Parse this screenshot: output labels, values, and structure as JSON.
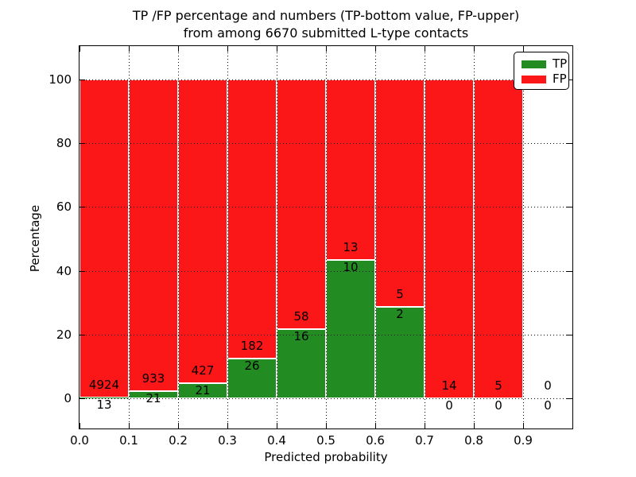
{
  "title_line1": "TP /FP percentage and numbers (TP-bottom value, FP-upper)",
  "title_line2": "from among 6670 submitted L-type contacts",
  "chart_data": {
    "type": "bar",
    "stacked": true,
    "normalized_to_percent": true,
    "title": "TP /FP percentage and numbers (TP-bottom value, FP-upper) from among 6670 submitted L-type contacts",
    "xlabel": "Predicted probability",
    "ylabel": "Percentage",
    "xlim": [
      0.0,
      1.0
    ],
    "ylim": [
      -10,
      110
    ],
    "bin_edges": [
      0.0,
      0.1,
      0.2,
      0.3,
      0.4,
      0.5,
      0.6,
      0.7,
      0.8,
      0.9,
      1.0
    ],
    "xticks": [
      "0.0",
      "0.1",
      "0.2",
      "0.3",
      "0.4",
      "0.5",
      "0.6",
      "0.7",
      "0.8",
      "0.9"
    ],
    "yticks": [
      0,
      20,
      40,
      60,
      80,
      100
    ],
    "grid": "dotted",
    "background": "#ffffff",
    "bar_edge_color": "#ffffff",
    "series": [
      {
        "name": "TP",
        "color": "#228b22",
        "counts": [
          13,
          21,
          21,
          26,
          16,
          10,
          2,
          0,
          0,
          0
        ]
      },
      {
        "name": "FP",
        "color": "#fb1717",
        "counts": [
          4924,
          933,
          427,
          182,
          58,
          13,
          5,
          14,
          5,
          0
        ]
      }
    ],
    "tp_percent_by_bin": [
      0.26,
      2.2,
      4.69,
      12.5,
      21.62,
      43.48,
      28.57,
      0,
      0,
      null
    ],
    "legend": {
      "position": "upper-right",
      "entries": [
        {
          "label": "TP",
          "color": "#228b22"
        },
        {
          "label": "FP",
          "color": "#fb1717"
        }
      ]
    }
  }
}
